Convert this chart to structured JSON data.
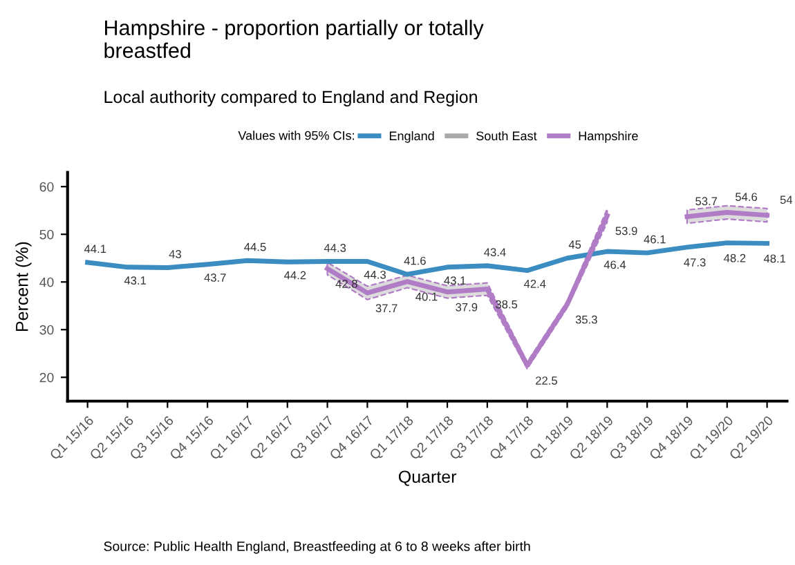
{
  "chart_data": {
    "type": "line",
    "title": "Hampshire - proportion partially or totally\nbreastfed",
    "subtitle": "Local authority compared to England and Region",
    "xlabel": "Quarter",
    "ylabel": "Percent (%)",
    "legend_title": "Values with 95% CIs:",
    "legend": "top",
    "annotations": [
      "Source: Public Health England, Breastfeeding at 6 to 8 weeks after birth"
    ],
    "categories": [
      "Q1 15/16",
      "Q2 15/16",
      "Q3 15/16",
      "Q4 15/16",
      "Q1 16/17",
      "Q2 16/17",
      "Q3 16/17",
      "Q4 16/17",
      "Q1 17/18",
      "Q2 17/18",
      "Q3 17/18",
      "Q4 17/18",
      "Q1 18/19",
      "Q2 18/19",
      "Q3 18/19",
      "Q4 18/19",
      "Q1 19/20",
      "Q2 19/20"
    ],
    "series": [
      {
        "name": "England",
        "color": "#3a8cc1",
        "values": [
          44.1,
          43.1,
          43,
          43.7,
          44.5,
          44.2,
          44.3,
          44.3,
          41.6,
          43.1,
          43.4,
          42.4,
          45,
          46.4,
          46.1,
          47.3,
          48.2,
          48.1
        ]
      },
      {
        "name": "South East",
        "color": "#aaaaaa",
        "values": [
          null,
          null,
          null,
          null,
          null,
          null,
          null,
          null,
          null,
          null,
          null,
          null,
          null,
          null,
          null,
          null,
          null,
          null
        ]
      },
      {
        "name": "Hampshire",
        "color": "#b07cc6",
        "values": [
          null,
          null,
          null,
          null,
          null,
          null,
          42.8,
          37.7,
          40.1,
          37.9,
          38.5,
          22.5,
          35.3,
          53.9,
          null,
          53.7,
          54.6,
          54
        ],
        "lower": [
          null,
          null,
          null,
          null,
          null,
          null,
          41.5,
          36.3,
          38.8,
          36.6,
          37.2,
          21.8,
          34.6,
          52.5,
          null,
          52.3,
          53.2,
          52.6
        ],
        "upper": [
          null,
          null,
          null,
          null,
          null,
          null,
          44.1,
          39.1,
          41.4,
          39.2,
          39.8,
          23.2,
          36,
          55.3,
          null,
          55.1,
          56,
          55.4
        ]
      }
    ],
    "data_labels": true,
    "ylim": [
      15,
      63
    ],
    "yticks": [
      20,
      30,
      40,
      50,
      60
    ],
    "grid": false,
    "marker": "none",
    "line_style": "solid"
  }
}
